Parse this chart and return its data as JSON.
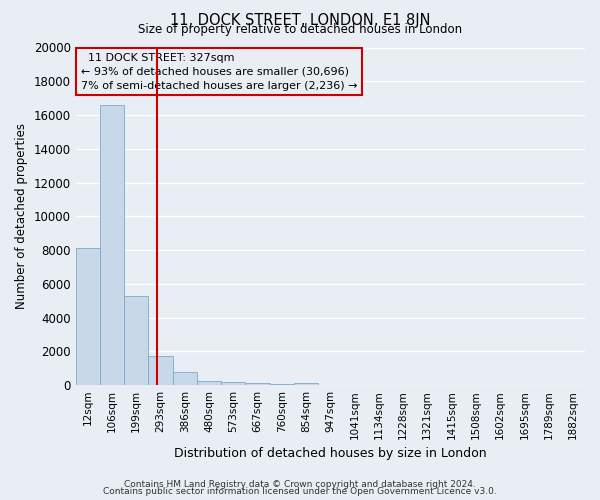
{
  "title": "11, DOCK STREET, LONDON, E1 8JN",
  "subtitle": "Size of property relative to detached houses in London",
  "xlabel": "Distribution of detached houses by size in London",
  "ylabel": "Number of detached properties",
  "bin_labels": [
    "12sqm",
    "106sqm",
    "199sqm",
    "293sqm",
    "386sqm",
    "480sqm",
    "573sqm",
    "667sqm",
    "760sqm",
    "854sqm",
    "947sqm",
    "1041sqm",
    "1134sqm",
    "1228sqm",
    "1321sqm",
    "1415sqm",
    "1508sqm",
    "1602sqm",
    "1695sqm",
    "1789sqm",
    "1882sqm"
  ],
  "bar_heights": [
    8100,
    16600,
    5300,
    1750,
    750,
    250,
    200,
    100,
    50,
    100,
    0,
    0,
    0,
    0,
    0,
    0,
    0,
    0,
    0,
    0,
    0
  ],
  "bar_color": "#c8d8e8",
  "bar_edgecolor": "#7aaac8",
  "vline_color": "#cc0000",
  "ylim": [
    0,
    20000
  ],
  "yticks": [
    0,
    2000,
    4000,
    6000,
    8000,
    10000,
    12000,
    14000,
    16000,
    18000,
    20000
  ],
  "annotation_title": "11 DOCK STREET: 327sqm",
  "annotation_line1": "← 93% of detached houses are smaller (30,696)",
  "annotation_line2": "7% of semi-detached houses are larger (2,236) →",
  "annotation_box_edgecolor": "#cc0000",
  "footer_line1": "Contains HM Land Registry data © Crown copyright and database right 2024.",
  "footer_line2": "Contains public sector information licensed under the Open Government Licence v3.0.",
  "background_color": "#e8eef4",
  "grid_color": "#ffffff"
}
